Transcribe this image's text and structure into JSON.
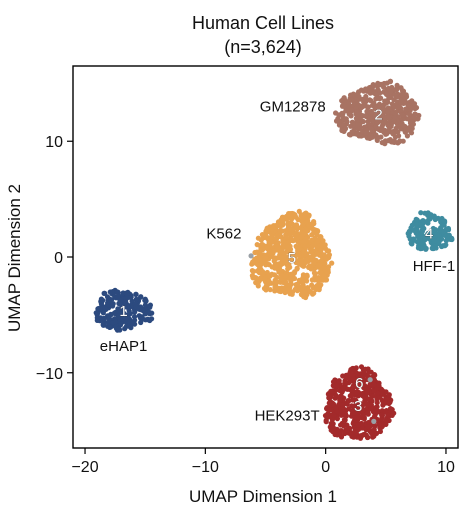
{
  "chart_data": {
    "type": "scatter",
    "title": "Human Cell Lines",
    "subtitle": "(n=3,624)",
    "xlabel": "UMAP Dimension 1",
    "ylabel": "UMAP Dimension 2",
    "xlim": [
      -21,
      11
    ],
    "ylim": [
      -16.5,
      16.5
    ],
    "xticks": [
      -20,
      -10,
      0,
      10
    ],
    "yticks": [
      -10,
      0,
      10
    ],
    "xtick_labels": [
      "−20",
      "−10",
      "0",
      "10"
    ],
    "ytick_labels": [
      "−10",
      "0",
      "10"
    ],
    "grid": false,
    "clusters": [
      {
        "id": "1",
        "name": "eHAP1",
        "color": "#2c4a7f",
        "cx": -16.8,
        "cy": -4.6,
        "rx": 2.4,
        "ry": 1.7
      },
      {
        "id": "2",
        "name": "GM12878",
        "color": "#a87363",
        "cx": 4.4,
        "cy": 12.4,
        "rx": 3.5,
        "ry": 2.6
      },
      {
        "id": "3",
        "name": "HEK293T",
        "color": "#a32a2b",
        "cx": 2.7,
        "cy": -12.8,
        "rx": 2.8,
        "ry": 3.1
      },
      {
        "id": "4",
        "name": "HFF-1",
        "color": "#3f8ca0",
        "cx": 8.6,
        "cy": 2.1,
        "rx": 1.8,
        "ry": 1.7
      },
      {
        "id": "5",
        "name": "K562",
        "color": "#e8a24f",
        "cx": -2.8,
        "cy": 0.0,
        "rx": 3.3,
        "ry": 3.6
      },
      {
        "id": "6",
        "name": "",
        "color": "#a32a2b",
        "cx": 2.8,
        "cy": -10.8,
        "rx": 0,
        "ry": 0
      }
    ],
    "outliers": [
      {
        "x": -6.2,
        "y": 0.1
      },
      {
        "x": 3.7,
        "y": -10.6
      },
      {
        "x": 4.0,
        "y": -14.2
      }
    ]
  }
}
